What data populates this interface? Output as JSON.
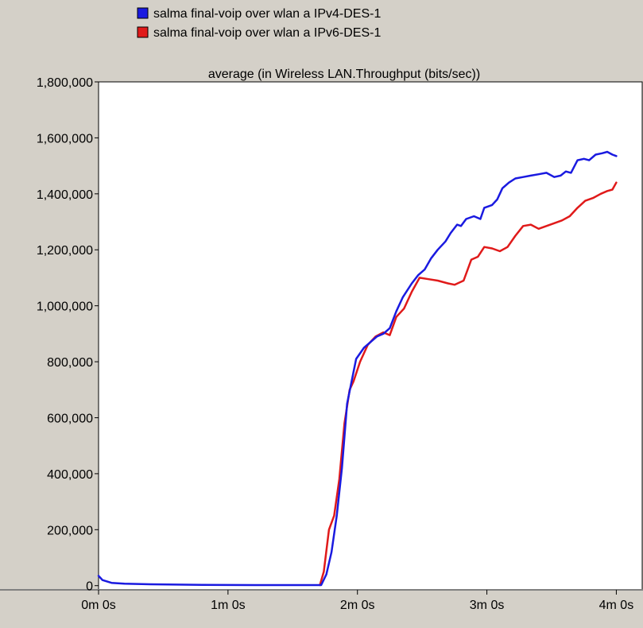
{
  "chart_data": {
    "type": "line",
    "title": "average (in Wireless LAN.Throughput (bits/sec))",
    "xlabel": "",
    "ylabel": "",
    "xlim": [
      0,
      4.2
    ],
    "ylim": [
      -15000,
      1800000
    ],
    "x_ticks": [
      {
        "value": 0,
        "label": "0m 0s"
      },
      {
        "value": 1,
        "label": "1m 0s"
      },
      {
        "value": 2,
        "label": "2m 0s"
      },
      {
        "value": 3,
        "label": "3m 0s"
      },
      {
        "value": 4,
        "label": "4m 0s"
      }
    ],
    "y_ticks": [
      {
        "value": 0,
        "label": "0"
      },
      {
        "value": 200000,
        "label": "200,000"
      },
      {
        "value": 400000,
        "label": "400,000"
      },
      {
        "value": 600000,
        "label": "600,000"
      },
      {
        "value": 800000,
        "label": "800,000"
      },
      {
        "value": 1000000,
        "label": "1,000,000"
      },
      {
        "value": 1200000,
        "label": "1,200,000"
      },
      {
        "value": 1400000,
        "label": "1,400,000"
      },
      {
        "value": 1600000,
        "label": "1,600,000"
      },
      {
        "value": 1800000,
        "label": "1,800,000"
      }
    ],
    "legend_position": "top",
    "grid": false,
    "series": [
      {
        "name": "salma final-voip over wlan a IPv4-DES-1",
        "color": "#1a1ae0",
        "points": [
          [
            0.0,
            35000
          ],
          [
            0.03,
            20000
          ],
          [
            0.1,
            10000
          ],
          [
            0.2,
            7000
          ],
          [
            0.4,
            5000
          ],
          [
            0.8,
            3000
          ],
          [
            1.2,
            2000
          ],
          [
            1.6,
            2000
          ],
          [
            1.72,
            2000
          ],
          [
            1.76,
            40000
          ],
          [
            1.8,
            120000
          ],
          [
            1.84,
            250000
          ],
          [
            1.88,
            420000
          ],
          [
            1.92,
            650000
          ],
          [
            1.99,
            810000
          ],
          [
            2.05,
            850000
          ],
          [
            2.1,
            870000
          ],
          [
            2.15,
            890000
          ],
          [
            2.2,
            900000
          ],
          [
            2.25,
            920000
          ],
          [
            2.3,
            980000
          ],
          [
            2.35,
            1030000
          ],
          [
            2.42,
            1080000
          ],
          [
            2.47,
            1110000
          ],
          [
            2.52,
            1130000
          ],
          [
            2.57,
            1170000
          ],
          [
            2.62,
            1200000
          ],
          [
            2.68,
            1230000
          ],
          [
            2.72,
            1260000
          ],
          [
            2.77,
            1290000
          ],
          [
            2.8,
            1285000
          ],
          [
            2.84,
            1310000
          ],
          [
            2.9,
            1320000
          ],
          [
            2.95,
            1310000
          ],
          [
            2.98,
            1350000
          ],
          [
            3.04,
            1360000
          ],
          [
            3.08,
            1380000
          ],
          [
            3.12,
            1420000
          ],
          [
            3.17,
            1440000
          ],
          [
            3.22,
            1455000
          ],
          [
            3.28,
            1460000
          ],
          [
            3.34,
            1465000
          ],
          [
            3.4,
            1470000
          ],
          [
            3.46,
            1475000
          ],
          [
            3.52,
            1460000
          ],
          [
            3.57,
            1465000
          ],
          [
            3.61,
            1480000
          ],
          [
            3.65,
            1475000
          ],
          [
            3.7,
            1520000
          ],
          [
            3.75,
            1525000
          ],
          [
            3.79,
            1520000
          ],
          [
            3.84,
            1540000
          ],
          [
            3.89,
            1545000
          ],
          [
            3.93,
            1550000
          ],
          [
            3.97,
            1540000
          ],
          [
            4.0,
            1535000
          ]
        ]
      },
      {
        "name": "salma final-voip over wlan a IPv6-DES-1",
        "color": "#e01a1a",
        "points": [
          [
            1.71,
            2000
          ],
          [
            1.74,
            50000
          ],
          [
            1.78,
            200000
          ],
          [
            1.82,
            250000
          ],
          [
            1.86,
            380000
          ],
          [
            1.9,
            580000
          ],
          [
            1.94,
            700000
          ],
          [
            1.97,
            730000
          ],
          [
            2.02,
            800000
          ],
          [
            2.08,
            860000
          ],
          [
            2.14,
            890000
          ],
          [
            2.2,
            905000
          ],
          [
            2.25,
            895000
          ],
          [
            2.3,
            960000
          ],
          [
            2.36,
            990000
          ],
          [
            2.42,
            1050000
          ],
          [
            2.48,
            1100000
          ],
          [
            2.55,
            1095000
          ],
          [
            2.62,
            1090000
          ],
          [
            2.7,
            1080000
          ],
          [
            2.75,
            1075000
          ],
          [
            2.82,
            1090000
          ],
          [
            2.88,
            1165000
          ],
          [
            2.93,
            1175000
          ],
          [
            2.98,
            1210000
          ],
          [
            3.04,
            1205000
          ],
          [
            3.1,
            1195000
          ],
          [
            3.16,
            1210000
          ],
          [
            3.22,
            1250000
          ],
          [
            3.28,
            1285000
          ],
          [
            3.34,
            1290000
          ],
          [
            3.4,
            1275000
          ],
          [
            3.46,
            1285000
          ],
          [
            3.52,
            1295000
          ],
          [
            3.58,
            1305000
          ],
          [
            3.64,
            1320000
          ],
          [
            3.7,
            1350000
          ],
          [
            3.76,
            1375000
          ],
          [
            3.82,
            1385000
          ],
          [
            3.88,
            1400000
          ],
          [
            3.93,
            1410000
          ],
          [
            3.97,
            1415000
          ],
          [
            4.0,
            1440000
          ]
        ]
      }
    ]
  }
}
